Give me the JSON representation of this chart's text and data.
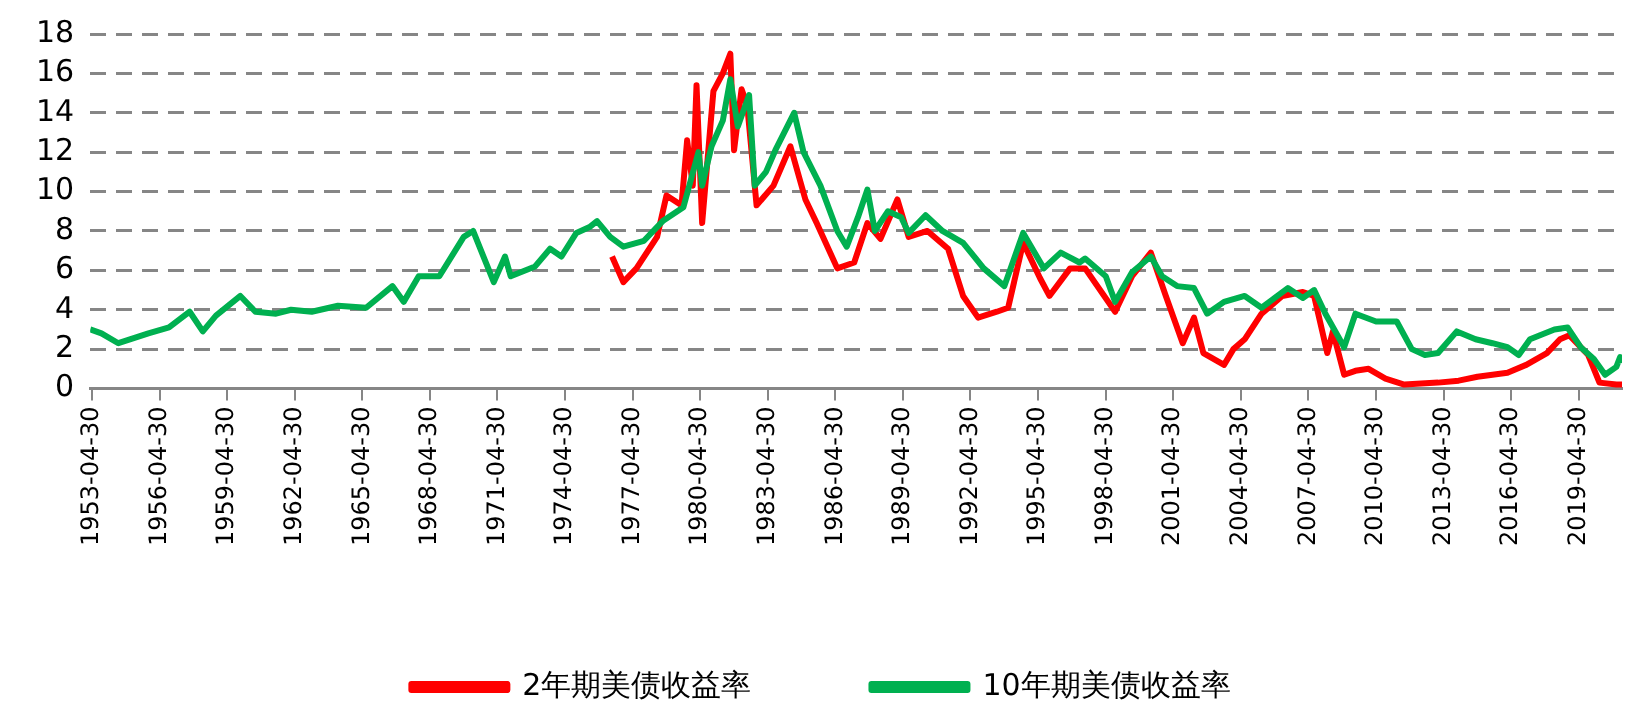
{
  "chart_data": {
    "type": "line",
    "ylim": [
      0,
      18
    ],
    "yticks": [
      0,
      2,
      4,
      6,
      8,
      10,
      12,
      14,
      16,
      18
    ],
    "xlim": [
      "1953-04",
      "2021-04"
    ],
    "xticks": [
      "1953-04-30",
      "1956-04-30",
      "1959-04-30",
      "1962-04-30",
      "1965-04-30",
      "1968-04-30",
      "1971-04-30",
      "1974-04-30",
      "1977-04-30",
      "1980-04-30",
      "1983-04-30",
      "1986-04-30",
      "1989-04-30",
      "1992-04-30",
      "1995-04-30",
      "1998-04-30",
      "2001-04-30",
      "2004-04-30",
      "2007-04-30",
      "2010-04-30",
      "2013-04-30",
      "2016-04-30",
      "2019-04-30"
    ],
    "grid": "y",
    "legend": "bottom",
    "line_style": "solid",
    "marker": "none",
    "series": [
      {
        "name": "2年期美债收益率",
        "color": "#ff0000",
        "x": [
          "1976-06",
          "1976-12",
          "1977-07",
          "1978-06",
          "1978-11",
          "1979-07",
          "1979-10",
          "1980-01",
          "1980-03",
          "1980-06",
          "1980-11",
          "1980-12",
          "1981-05",
          "1981-09",
          "1981-11",
          "1982-03",
          "1982-06",
          "1982-11",
          "1983-08",
          "1984-05",
          "1985-01",
          "1985-07",
          "1986-06",
          "1987-03",
          "1987-10",
          "1988-05",
          "1989-02",
          "1989-08",
          "1990-06",
          "1991-05",
          "1992-01",
          "1992-09",
          "1993-07",
          "1994-01",
          "1994-09",
          "1995-06",
          "1995-11",
          "1996-10",
          "1997-06",
          "1998-10",
          "1999-07",
          "2000-05",
          "2001-01",
          "2001-10",
          "2002-04",
          "2002-09",
          "2003-08",
          "2004-01",
          "2004-07",
          "2005-04",
          "2006-03",
          "2007-02",
          "2007-08",
          "2008-03",
          "2008-06",
          "2008-12",
          "2009-06",
          "2010-01",
          "2010-10",
          "2011-08",
          "2013-02",
          "2014-01",
          "2014-11",
          "2016-03",
          "2017-01",
          "2017-12",
          "2018-07",
          "2018-12",
          "2019-10",
          "2020-04",
          "2021-01",
          "2021-04"
        ],
        "values": [
          6.7,
          5.4,
          6.1,
          7.7,
          9.8,
          9.3,
          12.6,
          10.3,
          15.4,
          8.4,
          14.0,
          15.1,
          16.0,
          17.0,
          12.1,
          15.2,
          14.4,
          9.3,
          10.3,
          12.3,
          9.6,
          8.4,
          6.1,
          6.4,
          8.4,
          7.6,
          9.6,
          7.7,
          8.0,
          7.1,
          4.7,
          3.6,
          3.9,
          4.1,
          7.4,
          5.6,
          4.7,
          6.1,
          6.1,
          3.9,
          5.7,
          6.9,
          4.7,
          2.3,
          3.6,
          1.8,
          1.2,
          2.0,
          2.5,
          3.8,
          4.7,
          4.9,
          4.7,
          1.8,
          2.9,
          0.7,
          0.9,
          1.0,
          0.5,
          0.2,
          0.3,
          0.4,
          0.6,
          0.8,
          1.2,
          1.8,
          2.5,
          2.7,
          1.7,
          0.3,
          0.2,
          0.2
        ]
      },
      {
        "name": "10年期美债收益率",
        "color": "#00b050",
        "x": [
          "1953-04",
          "1953-10",
          "1954-07",
          "1955-11",
          "1956-10",
          "1957-09",
          "1958-04",
          "1958-11",
          "1959-12",
          "1960-08",
          "1961-07",
          "1962-03",
          "1963-02",
          "1964-04",
          "1965-07",
          "1966-09",
          "1967-03",
          "1967-11",
          "1968-10",
          "1969-11",
          "1970-04",
          "1971-03",
          "1971-09",
          "1971-12",
          "1973-01",
          "1973-09",
          "1974-03",
          "1974-11",
          "1975-06",
          "1975-10",
          "1976-05",
          "1976-12",
          "1977-11",
          "1978-09",
          "1979-08",
          "1980-04",
          "1980-06",
          "1980-11",
          "1981-05",
          "1981-09",
          "1982-01",
          "1982-07",
          "1982-10",
          "1983-04",
          "1983-09",
          "1984-07",
          "1984-12",
          "1985-09",
          "1986-06",
          "1986-11",
          "1987-05",
          "1987-10",
          "1988-02",
          "1988-09",
          "1989-04",
          "1989-08",
          "1990-05",
          "1991-02",
          "1992-01",
          "1992-12",
          "1993-11",
          "1994-09",
          "1995-08",
          "1996-05",
          "1997-03",
          "1997-06",
          "1998-05",
          "1998-10",
          "1999-07",
          "2000-05",
          "2000-11",
          "2001-07",
          "2002-04",
          "2002-11",
          "2003-08",
          "2004-07",
          "2005-04",
          "2005-11",
          "2006-06",
          "2007-02",
          "2007-08",
          "2008-02",
          "2008-12",
          "2009-06",
          "2010-05",
          "2011-04",
          "2011-12",
          "2012-07",
          "2013-02",
          "2013-12",
          "2014-10",
          "2015-07",
          "2016-03",
          "2016-09",
          "2017-03",
          "2018-04",
          "2018-11",
          "2019-06",
          "2020-01",
          "2020-07",
          "2021-01",
          "2021-03",
          "2021-04"
        ],
        "values": [
          3.0,
          2.8,
          2.3,
          2.8,
          3.1,
          3.9,
          2.9,
          3.7,
          4.7,
          3.9,
          3.8,
          4.0,
          3.9,
          4.2,
          4.1,
          5.2,
          4.4,
          5.7,
          5.7,
          7.7,
          8.0,
          5.4,
          6.7,
          5.7,
          6.2,
          7.1,
          6.7,
          7.9,
          8.2,
          8.5,
          7.7,
          7.2,
          7.5,
          8.5,
          9.2,
          12.0,
          10.3,
          12.3,
          13.6,
          15.7,
          13.3,
          14.9,
          10.3,
          11.0,
          12.1,
          14.0,
          12.0,
          10.3,
          8.0,
          7.2,
          8.7,
          10.1,
          8.0,
          9.0,
          8.7,
          7.9,
          8.8,
          8.0,
          7.4,
          6.1,
          5.2,
          7.9,
          6.1,
          6.9,
          6.4,
          6.6,
          5.7,
          4.4,
          5.9,
          6.7,
          5.7,
          5.2,
          5.1,
          3.8,
          4.4,
          4.7,
          4.1,
          4.6,
          5.1,
          4.6,
          5.0,
          3.8,
          2.1,
          3.8,
          3.4,
          3.4,
          2.0,
          1.7,
          1.8,
          2.9,
          2.5,
          2.3,
          2.1,
          1.7,
          2.5,
          3.0,
          3.1,
          2.1,
          1.5,
          0.7,
          1.1,
          1.6,
          1.3
        ]
      }
    ]
  }
}
